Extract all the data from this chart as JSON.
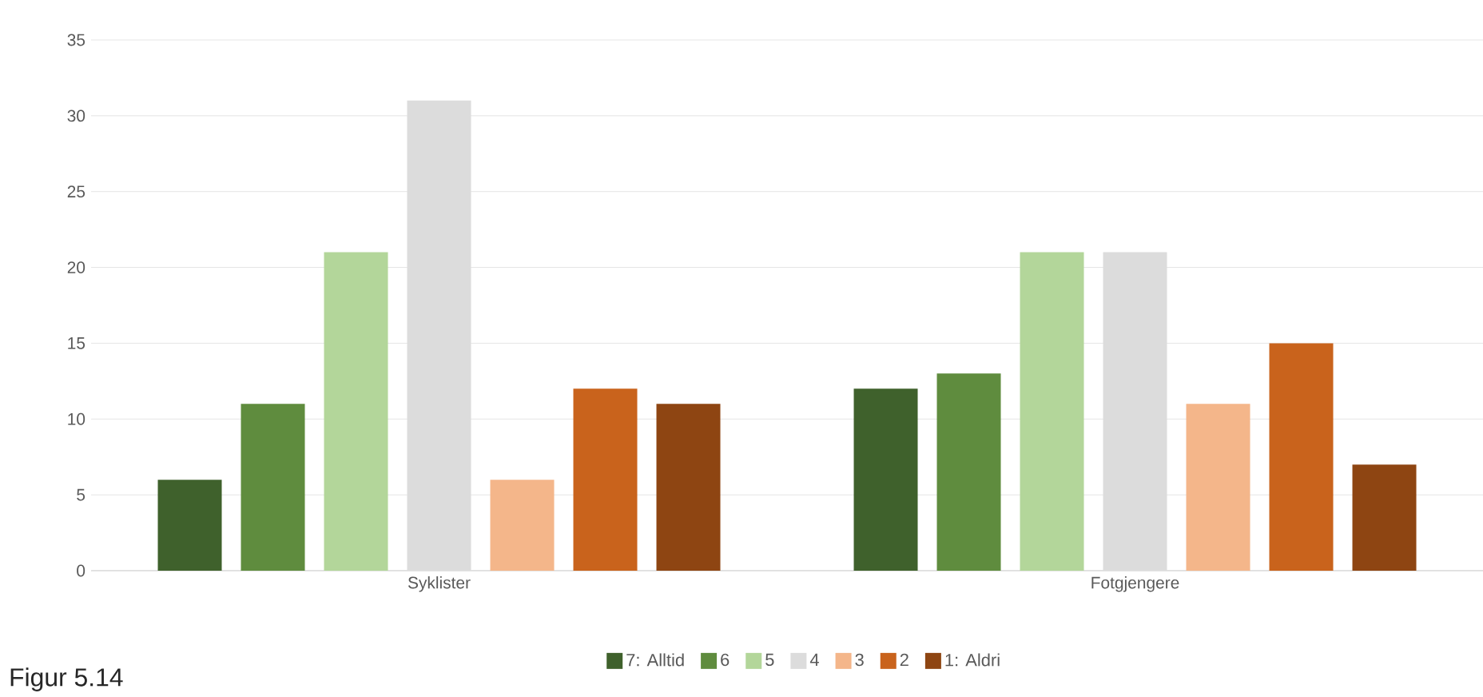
{
  "chart_data": {
    "type": "bar",
    "categories": [
      "Syklister",
      "Fotgjengere"
    ],
    "series": [
      {
        "name": "7: Alltid",
        "color": "#3f612c",
        "values": [
          6,
          12
        ]
      },
      {
        "name": "6",
        "color": "#5f8c3e",
        "values": [
          11,
          13
        ]
      },
      {
        "name": "5",
        "color": "#b3d69a",
        "values": [
          21,
          21
        ]
      },
      {
        "name": "4",
        "color": "#dcdcdc",
        "values": [
          31,
          21
        ]
      },
      {
        "name": "3",
        "color": "#f4b68a",
        "values": [
          6,
          11
        ]
      },
      {
        "name": "2",
        "color": "#c9631c",
        "values": [
          12,
          15
        ]
      },
      {
        "name": "1: Aldri",
        "color": "#8e4512",
        "values": [
          11,
          7
        ]
      }
    ],
    "ylim": [
      0,
      35
    ],
    "yticks": [
      0,
      5,
      10,
      15,
      20,
      25,
      30,
      35
    ],
    "grid": "y",
    "legend": "bottom",
    "annotations": [
      "Figur 5.14"
    ]
  }
}
